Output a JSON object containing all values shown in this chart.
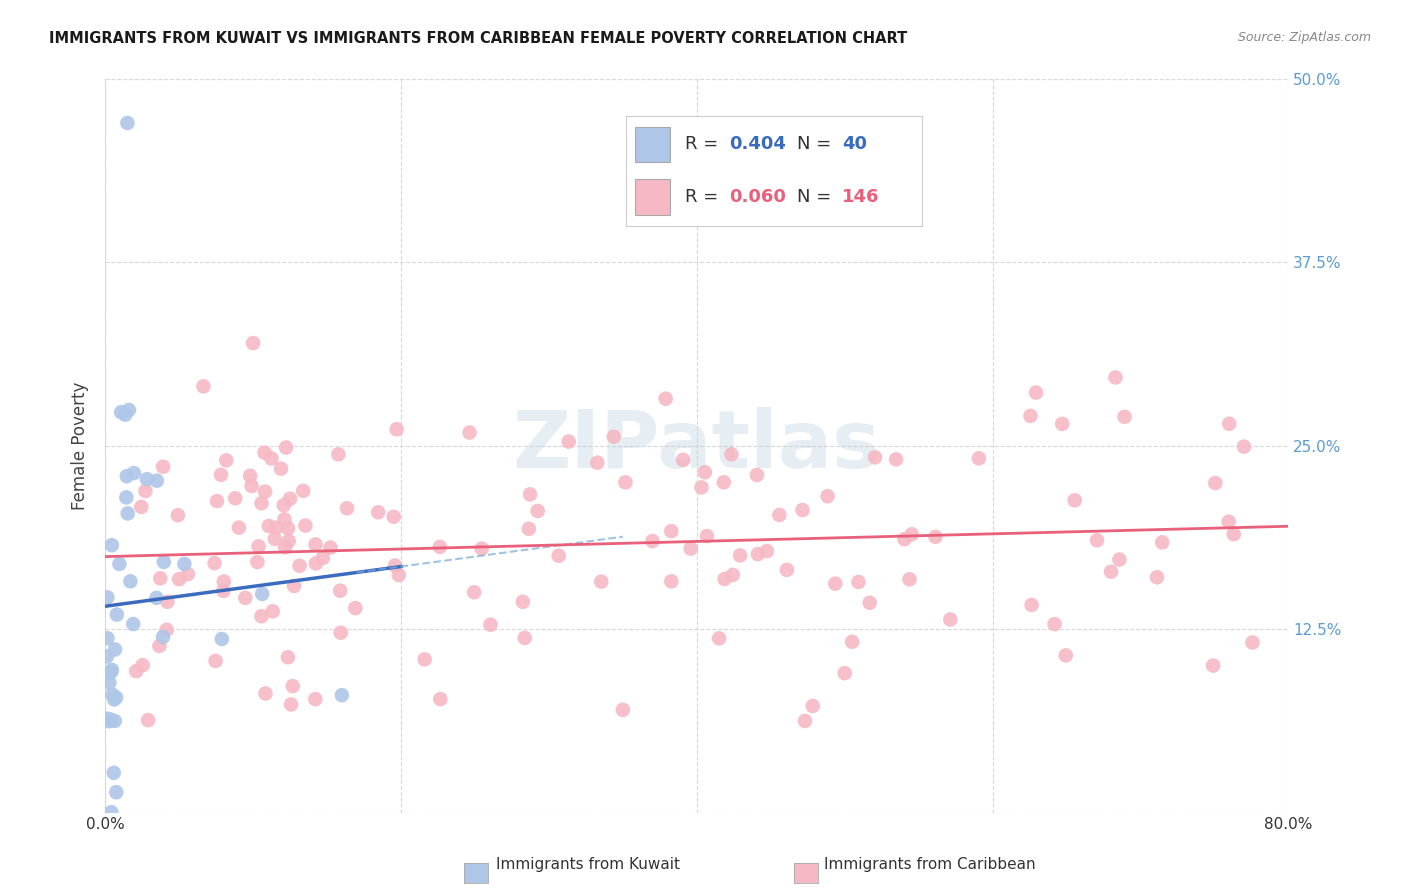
{
  "title": "IMMIGRANTS FROM KUWAIT VS IMMIGRANTS FROM CARIBBEAN FEMALE POVERTY CORRELATION CHART",
  "source": "Source: ZipAtlas.com",
  "ylabel": "Female Poverty",
  "xlim": [
    0.0,
    0.8
  ],
  "ylim": [
    0.0,
    0.5
  ],
  "xticks": [
    0.0,
    0.2,
    0.4,
    0.6,
    0.8
  ],
  "yticks": [
    0.0,
    0.125,
    0.25,
    0.375,
    0.5
  ],
  "kuwait_R": 0.404,
  "kuwait_N": 40,
  "caribbean_R": 0.06,
  "caribbean_N": 146,
  "kuwait_color": "#aec6e8",
  "kuwait_line_color": "#3a6bbf",
  "kuwait_line_dashed_color": "#7aaad8",
  "caribbean_color": "#f5b8c4",
  "caribbean_line_color": "#e8607a",
  "watermark": "ZIPatlas",
  "background_color": "#ffffff",
  "grid_color": "#d8d8d8",
  "right_tick_color": "#5b9bd5",
  "title_color": "#1a1a1a",
  "source_color": "#888888"
}
